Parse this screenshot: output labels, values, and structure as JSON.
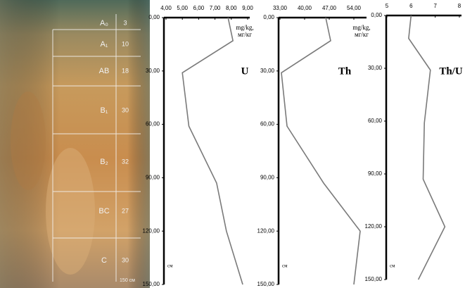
{
  "photo": {
    "horizons": [
      {
        "label": "A₀",
        "value": "3"
      },
      {
        "label": "A₁",
        "value": "10"
      },
      {
        "label": "AB",
        "value": "18"
      },
      {
        "label": "B₁",
        "value": "30"
      },
      {
        "label": "B₂",
        "value": "32"
      },
      {
        "label": "BC",
        "value": "27"
      },
      {
        "label": "C",
        "value": "30"
      }
    ],
    "scale_label": "150 см"
  },
  "chart_data": [
    {
      "type": "line",
      "label": "U",
      "unit": [
        "mg/kg,",
        "мг/кг"
      ],
      "ylabel": "см",
      "depth": [
        0,
        13,
        31,
        61,
        93,
        120,
        150
      ],
      "values": [
        7.8,
        8.1,
        5.0,
        5.4,
        7.1,
        7.7,
        8.7
      ],
      "color": "#7a7a7a",
      "xlim": [
        4,
        9
      ],
      "xticks": [
        {
          "value": 4,
          "label": "4,00"
        },
        {
          "value": 5,
          "label": "5,00"
        },
        {
          "value": 6,
          "label": "6,00"
        },
        {
          "value": 7,
          "label": "7,00"
        },
        {
          "value": 8,
          "label": "8,00"
        },
        {
          "value": 9,
          "label": "9,00"
        }
      ],
      "ylim": [
        0,
        150
      ],
      "yticks": [
        {
          "value": 0,
          "label": "0,00"
        },
        {
          "value": 30,
          "label": "30,00"
        },
        {
          "value": 60,
          "label": "60,00"
        },
        {
          "value": 90,
          "label": "90,00"
        },
        {
          "value": 120,
          "label": "120,00"
        },
        {
          "value": 150,
          "label": "150,00"
        }
      ]
    },
    {
      "type": "line",
      "label": "Th",
      "unit": [
        "mg/kg,",
        "мг/кг"
      ],
      "ylabel": "см",
      "depth": [
        0,
        13,
        31,
        61,
        93,
        120,
        150
      ],
      "values": [
        46,
        47.4,
        33.4,
        35,
        45.4,
        55.8,
        54
      ],
      "color": "#7a7a7a",
      "xlim": [
        33,
        57
      ],
      "xticks": [
        {
          "value": 33,
          "label": "33,00"
        },
        {
          "value": 40,
          "label": "40,00"
        },
        {
          "value": 47,
          "label": "47,00"
        },
        {
          "value": 54,
          "label": "54,00"
        }
      ],
      "ylim": [
        0,
        150
      ],
      "yticks": [
        {
          "value": 0,
          "label": "0,00"
        },
        {
          "value": 30,
          "label": "30,00"
        },
        {
          "value": 60,
          "label": "60,00"
        },
        {
          "value": 90,
          "label": "90,00"
        },
        {
          "value": 120,
          "label": "120,00"
        },
        {
          "value": 150,
          "label": "150,00"
        }
      ]
    },
    {
      "type": "line",
      "label": "Th/U",
      "ylabel": "см",
      "depth": [
        0,
        13,
        31,
        61,
        93,
        120,
        150
      ],
      "values": [
        6.0,
        5.9,
        6.8,
        6.55,
        6.5,
        7.4,
        6.3
      ],
      "color": "#7a7a7a",
      "xlim": [
        5,
        8
      ],
      "xticks": [
        5,
        6,
        7,
        8
      ],
      "ylim": [
        0,
        150
      ],
      "yticks": [
        {
          "value": 0,
          "label": "0,00"
        },
        {
          "value": 30,
          "label": "30,00"
        },
        {
          "value": 60,
          "label": "60,00"
        },
        {
          "value": 90,
          "label": "90,00"
        },
        {
          "value": 120,
          "label": "120,00"
        },
        {
          "value": 150,
          "label": "150,00"
        }
      ]
    }
  ]
}
